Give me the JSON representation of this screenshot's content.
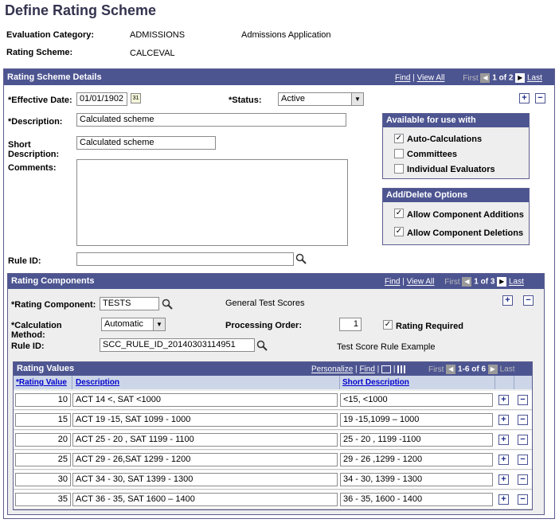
{
  "page_title": "Define Rating Scheme",
  "header": {
    "eval_cat_label": "Evaluation Category:",
    "eval_cat_value": "ADMISSIONS",
    "eval_cat_desc": "Admissions Application",
    "scheme_label": "Rating Scheme:",
    "scheme_value": "CALCEVAL"
  },
  "details": {
    "title": "Rating Scheme Details",
    "find": "Find",
    "view_all": "View All",
    "first": "First",
    "range": "1 of 2",
    "last": "Last",
    "effdt_label": "*Effective Date:",
    "effdt_value": "01/01/1902",
    "status_label": "*Status:",
    "status_value": "Active",
    "desc_label": "*Description:",
    "desc_value": "Calculated scheme",
    "short_label": "Short Description:",
    "short_value": "Calculated scheme",
    "comments_label": "Comments:",
    "ruleid_label": "Rule ID:",
    "ruleid_value": ""
  },
  "available": {
    "title": "Available for use with",
    "items": [
      {
        "label": "Auto-Calculations",
        "checked": true
      },
      {
        "label": "Committees",
        "checked": false
      },
      {
        "label": "Individual Evaluators",
        "checked": false
      }
    ]
  },
  "adddelete": {
    "title": "Add/Delete Options",
    "items": [
      {
        "label": "Allow Component Additions",
        "checked": true
      },
      {
        "label": "Allow Component Deletions",
        "checked": true
      }
    ]
  },
  "components": {
    "title": "Rating Components",
    "find": "Find",
    "view_all": "View All",
    "first": "First",
    "range": "1 of 3",
    "last": "Last",
    "comp_label": "*Rating Component:",
    "comp_value": "TESTS",
    "comp_desc": "General Test Scores",
    "calc_label": "*Calculation Method:",
    "calc_value": "Automatic",
    "order_label": "Processing Order:",
    "order_value": "1",
    "required_label": "Rating Required",
    "ruleid_label": "Rule ID:",
    "ruleid_value": "SCC_RULE_ID_20140303114951",
    "ruleid_desc": "Test Score Rule Example"
  },
  "values_grid": {
    "title": "Rating Values",
    "personalize": "Personalize",
    "find": "Find",
    "first": "First",
    "range": "1-6 of 6",
    "last": "Last",
    "col_value": "*Rating Value",
    "col_desc": "Description",
    "col_short": "Short Description",
    "rows": [
      {
        "value": "10",
        "desc": "ACT 14 <, SAT <1000",
        "short": "<15, <1000"
      },
      {
        "value": "15",
        "desc": "ACT 19 -15, SAT 1099 - 1000",
        "short": "19 -15,1099 – 1000"
      },
      {
        "value": "20",
        "desc": "ACT 25 - 20 , SAT 1199 - 1100",
        "short": "25 - 20 , 1199 -1100"
      },
      {
        "value": "25",
        "desc": "ACT 29 - 26,SAT 1299 - 1200",
        "short": "29 - 26 ,1299 - 1200"
      },
      {
        "value": "30",
        "desc": "ACT 34 - 30, SAT 1399 - 1300",
        "short": "34 - 30, 1399 - 1300"
      },
      {
        "value": "35",
        "desc": "ACT 36 - 35, SAT 1600 – 1400",
        "short": "36 - 35, 1600 - 1400"
      }
    ]
  }
}
